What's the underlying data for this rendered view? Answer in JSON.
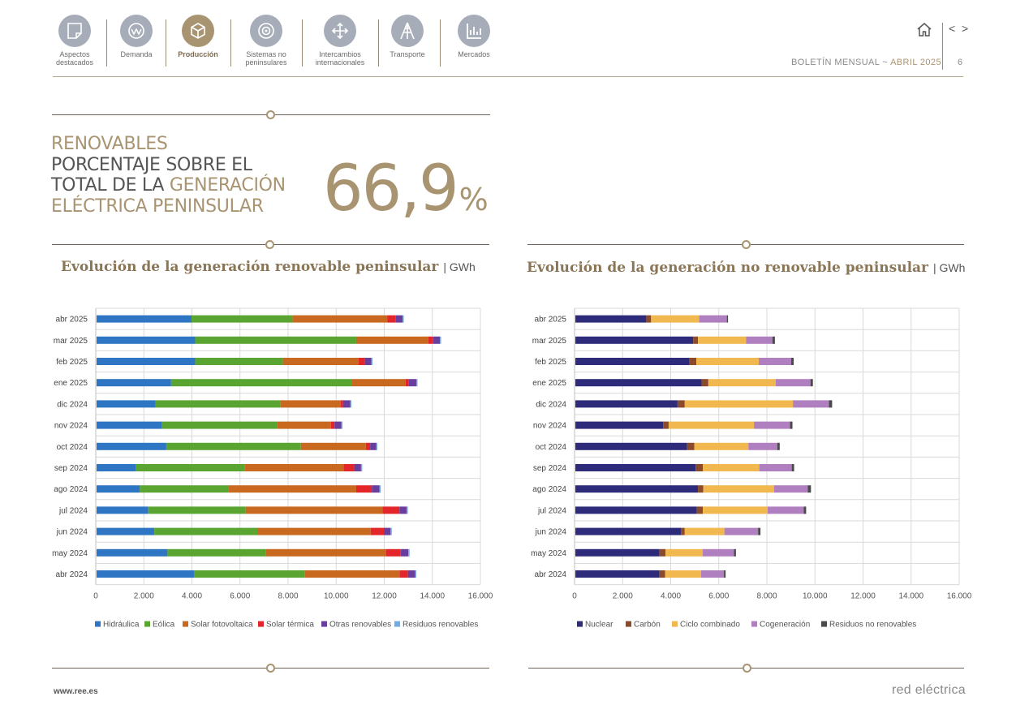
{
  "nav": {
    "items": [
      {
        "label": "Aspectos destacados",
        "icon": "document-icon",
        "active": false
      },
      {
        "label": "Demanda",
        "icon": "demand-icon",
        "active": false
      },
      {
        "label": "Producción",
        "icon": "production-cube-icon",
        "active": true
      },
      {
        "label": "Sistemas no peninsulares",
        "icon": "target-icon",
        "active": false
      },
      {
        "label": "Intercambios internacionales",
        "icon": "exchange-arrows-icon",
        "active": false
      },
      {
        "label": "Transporte",
        "icon": "transmission-tower-icon",
        "active": false
      },
      {
        "label": "Mercados",
        "icon": "bar-chart-icon",
        "active": false
      }
    ]
  },
  "header": {
    "bulletin": "BOLETÍN MENSUAL",
    "sep": "~",
    "month": "ABRIL 2025",
    "page": "6",
    "home_icon": "home-icon",
    "prev_label": "<",
    "next_label": ">"
  },
  "hero": {
    "line1_gold": "RENOVABLES",
    "line2": "PORCENTAJE SOBRE EL",
    "line3_dark": "TOTAL DE LA ",
    "line3_gold": "GENERACIÓN",
    "line4_gold": "ELÉCTRICA PENINSULAR",
    "value": "66,9",
    "value_unit": "%"
  },
  "colors": {
    "gold": "#a99472",
    "renewables": [
      "#2e75c3",
      "#5aa532",
      "#c8691f",
      "#e3262a",
      "#6a3e9c",
      "#79a9da"
    ],
    "non_renewables": [
      "#2e2c7a",
      "#8b4a2a",
      "#f0b84f",
      "#b07fc0",
      "#4a4a4a"
    ]
  },
  "chart_data": [
    {
      "type": "bar",
      "orientation": "horizontal",
      "stacked": true,
      "title": "Evolución de la generación renovable peninsular",
      "unit": "GWh",
      "categories": [
        "abr 2025",
        "mar 2025",
        "feb 2025",
        "ene 2025",
        "dic 2024",
        "nov 2024",
        "oct 2024",
        "sep 2024",
        "ago 2024",
        "jul 2024",
        "jun 2024",
        "may 2024",
        "abr 2024"
      ],
      "xlim": [
        0,
        16000
      ],
      "xticks": [
        0,
        2000,
        4000,
        6000,
        8000,
        10000,
        12000,
        14000,
        16000
      ],
      "xtick_labels": [
        "0",
        "2.000",
        "4.000",
        "6.000",
        "8.000",
        "10.000",
        "12.000",
        "14.000",
        "16.000"
      ],
      "legend_position": "bottom",
      "series": [
        {
          "name": "Hidráulica",
          "values": [
            3950,
            4100,
            4100,
            3100,
            2450,
            2700,
            2900,
            1620,
            1800,
            2150,
            2400,
            2950,
            4050
          ]
        },
        {
          "name": "Eólica",
          "values": [
            4200,
            6700,
            3650,
            7500,
            5200,
            4800,
            5600,
            4550,
            3700,
            4050,
            4300,
            4100,
            4600
          ]
        },
        {
          "name": "Solar fotovoltaica",
          "values": [
            3950,
            3000,
            3150,
            2250,
            2500,
            2250,
            2700,
            4100,
            5300,
            5700,
            4700,
            5000,
            3950
          ]
        },
        {
          "name": "Solar térmica",
          "values": [
            350,
            200,
            250,
            120,
            100,
            150,
            180,
            450,
            650,
            700,
            550,
            600,
            350
          ]
        },
        {
          "name": "Otras renovables",
          "values": [
            280,
            280,
            280,
            330,
            300,
            280,
            250,
            280,
            320,
            300,
            280,
            320,
            300
          ]
        },
        {
          "name": "Residuos renovables",
          "values": [
            50,
            50,
            50,
            50,
            50,
            50,
            50,
            50,
            50,
            50,
            50,
            50,
            50
          ]
        }
      ]
    },
    {
      "type": "bar",
      "orientation": "horizontal",
      "stacked": true,
      "title": "Evolución de la generación no renovable peninsular",
      "unit": "GWh",
      "categories": [
        "abr 2025",
        "mar 2025",
        "feb 2025",
        "ene 2025",
        "dic 2024",
        "nov 2024",
        "oct 2024",
        "sep 2024",
        "ago 2024",
        "jul 2024",
        "jun 2024",
        "may 2024",
        "abr 2024"
      ],
      "xlim": [
        0,
        16000
      ],
      "xticks": [
        0,
        2000,
        4000,
        6000,
        8000,
        10000,
        12000,
        14000,
        16000
      ],
      "xtick_labels": [
        "0",
        "2.000",
        "4.000",
        "6.000",
        "8.000",
        "10.000",
        "12.000",
        "14.000",
        "16.000"
      ],
      "legend_position": "bottom",
      "series": [
        {
          "name": "Nuclear",
          "values": [
            2950,
            4900,
            4750,
            5250,
            4250,
            3650,
            4650,
            5000,
            5100,
            5050,
            4400,
            3500,
            3500
          ]
        },
        {
          "name": "Carbón",
          "values": [
            200,
            200,
            280,
            280,
            300,
            230,
            300,
            300,
            220,
            250,
            150,
            250,
            230
          ]
        },
        {
          "name": "Ciclo combinado",
          "values": [
            2000,
            2000,
            2600,
            2800,
            4500,
            3550,
            2250,
            2350,
            2950,
            2700,
            1650,
            1550,
            1500
          ]
        },
        {
          "name": "Cogeneración",
          "values": [
            1150,
            1100,
            1350,
            1450,
            1500,
            1500,
            1200,
            1350,
            1400,
            1500,
            1400,
            1300,
            950
          ]
        },
        {
          "name": "Residuos no renovables",
          "values": [
            50,
            100,
            100,
            100,
            130,
            100,
            100,
            100,
            130,
            100,
            100,
            80,
            70
          ]
        }
      ]
    }
  ],
  "footer": {
    "url": "www.ree.es",
    "logo": "red eléctrica"
  }
}
